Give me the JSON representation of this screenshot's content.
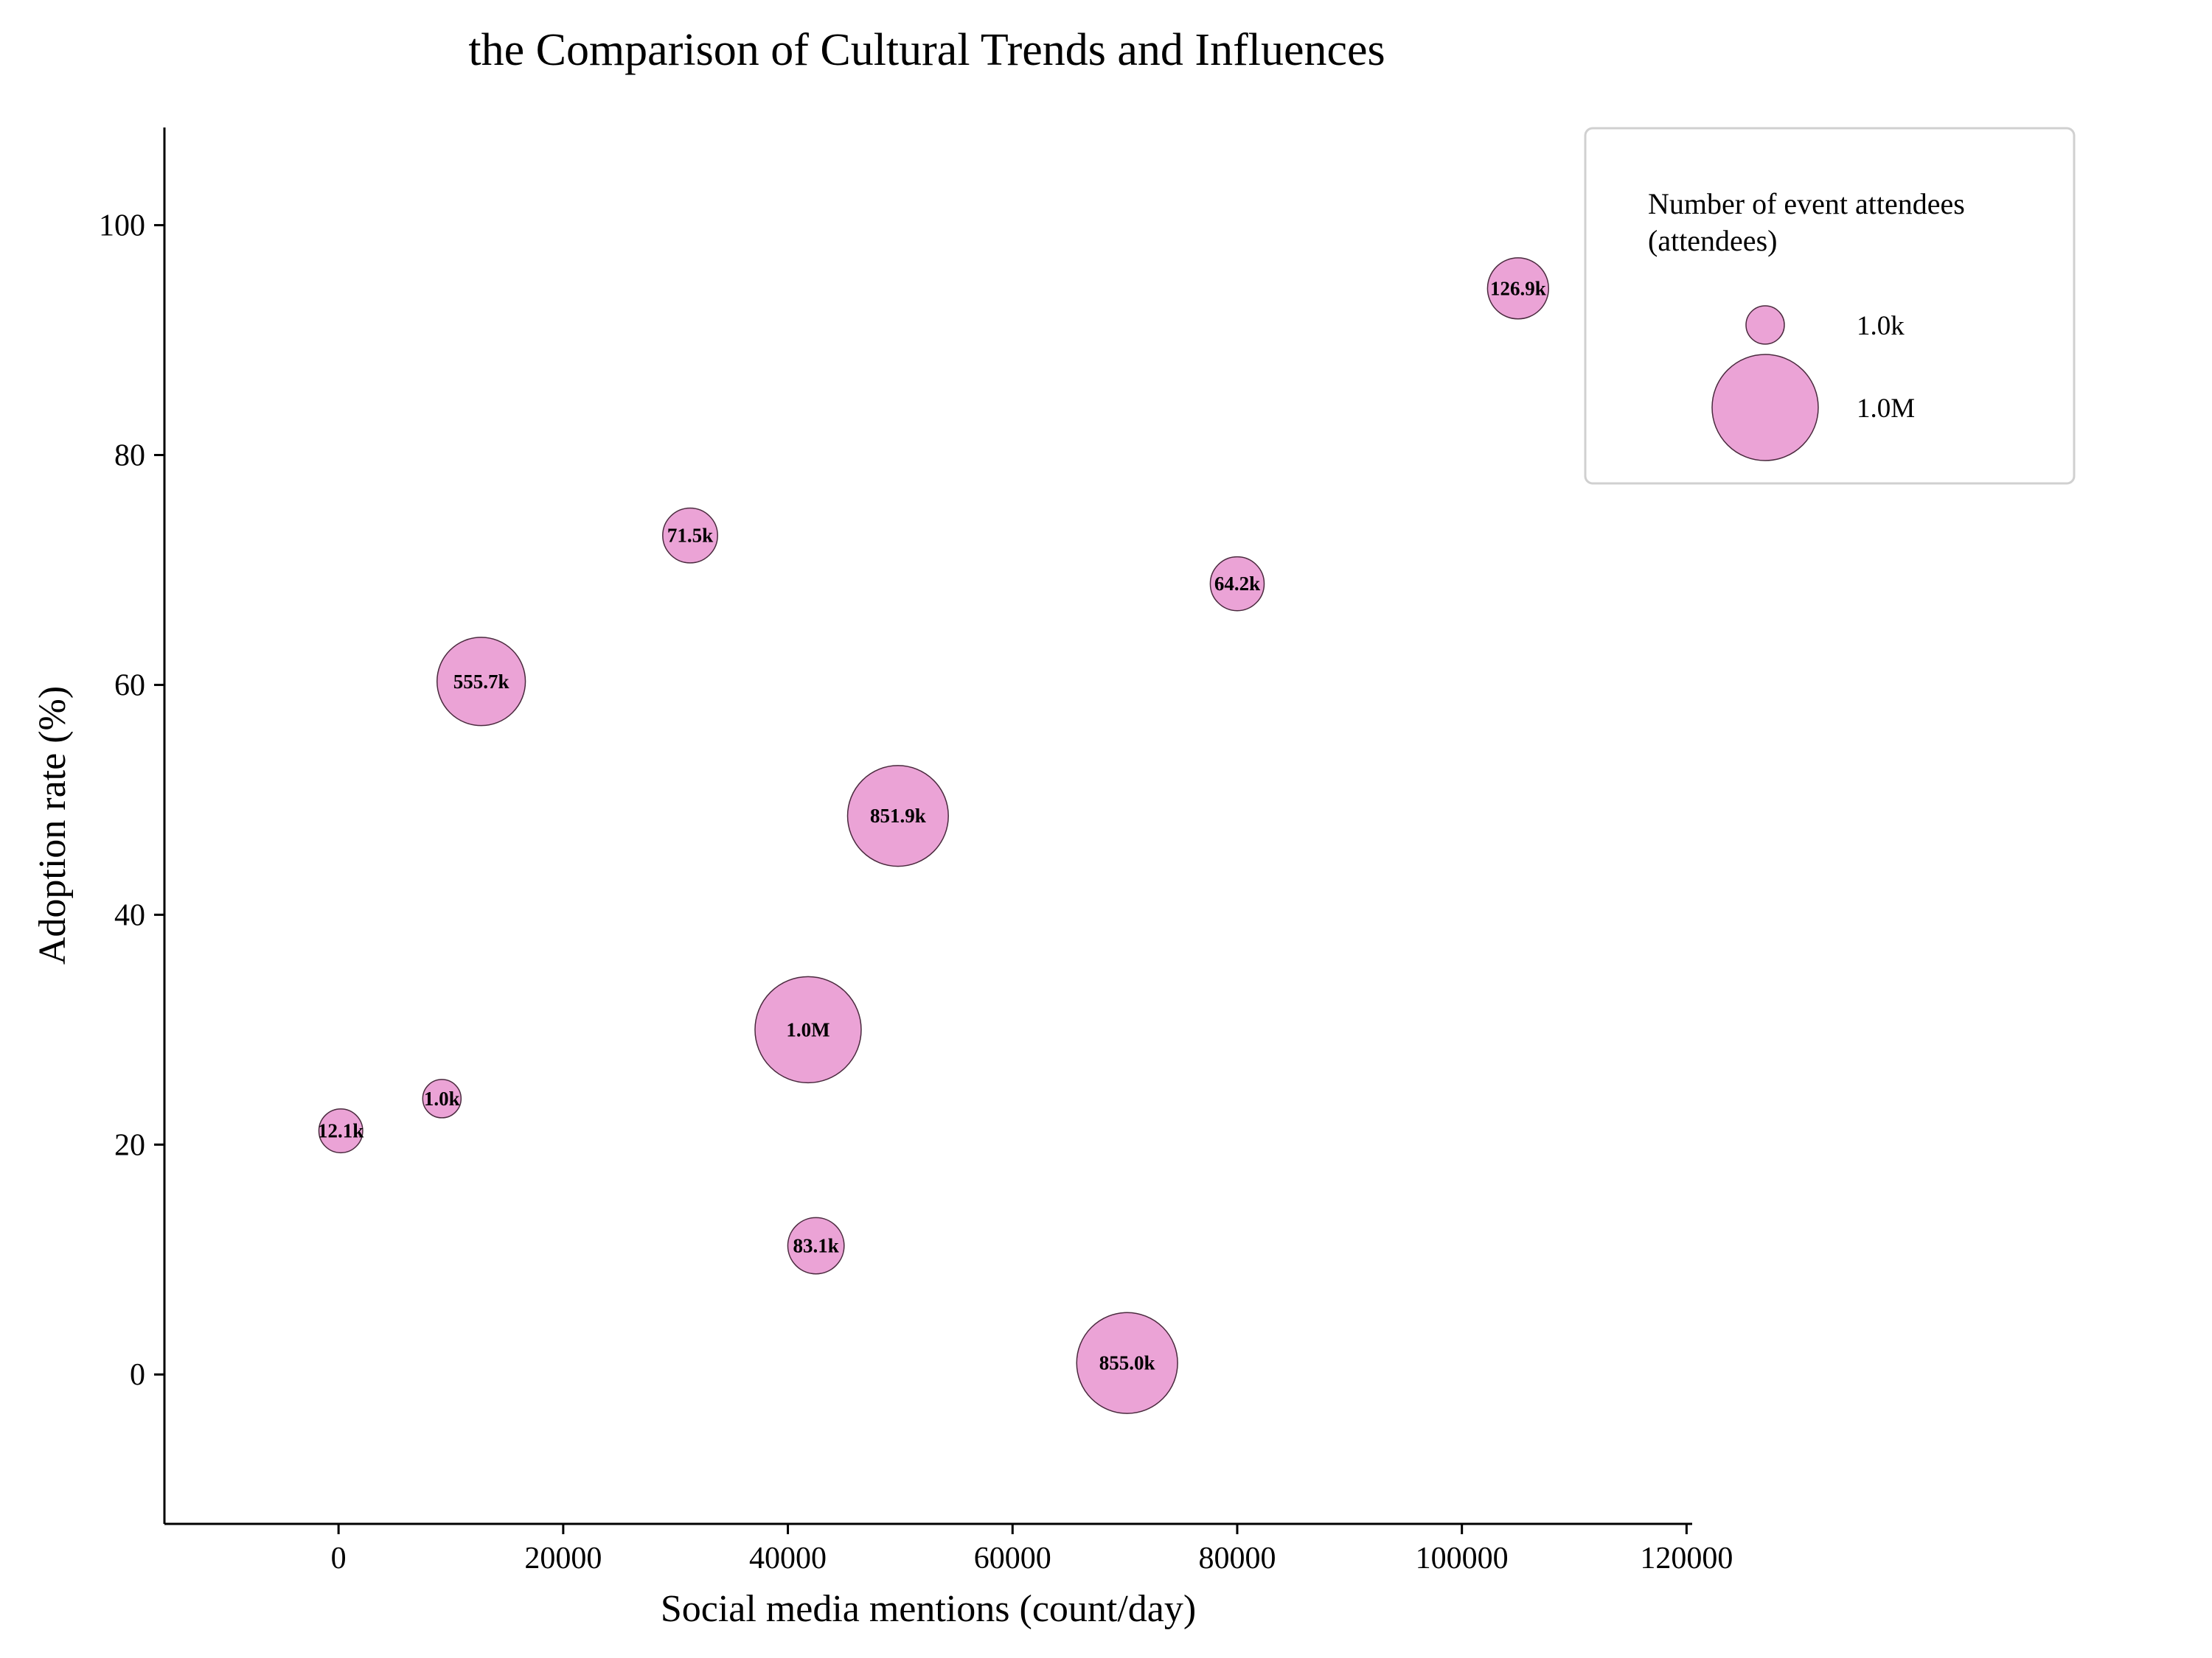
{
  "chart_data": {
    "type": "scatter",
    "title": "the Comparison of Cultural Trends and Influences",
    "xlabel": "Social media mentions (count/day)",
    "ylabel": "Adoption rate (%)",
    "xlim": [
      -15500,
      120500
    ],
    "ylim": [
      -13,
      108.5
    ],
    "xticks": [
      0,
      20000,
      40000,
      60000,
      80000,
      100000,
      120000
    ],
    "yticks": [
      0,
      20,
      40,
      60,
      80,
      100
    ],
    "grid": false,
    "size_legend": {
      "title_lines": [
        "Number of event attendees",
        "(attendees)"
      ],
      "placement": "top-right",
      "entries": [
        {
          "label": "1.0k",
          "size": 1000
        },
        {
          "label": "1.0M",
          "size": 1000000
        }
      ]
    },
    "colors": {
      "bubble_fill": "#eba3d6",
      "bubble_edge": "#4a2a3e",
      "axis": "#000000"
    },
    "points": [
      {
        "x": 105000,
        "y": 94.5,
        "size": 126900,
        "label": "126.9k"
      },
      {
        "x": 31300,
        "y": 73.0,
        "size": 71500,
        "label": "71.5k"
      },
      {
        "x": 80000,
        "y": 68.8,
        "size": 64200,
        "label": "64.2k"
      },
      {
        "x": 12700,
        "y": 60.3,
        "size": 555700,
        "label": "555.7k"
      },
      {
        "x": 49800,
        "y": 48.6,
        "size": 851900,
        "label": "851.9k"
      },
      {
        "x": 41800,
        "y": 30.0,
        "size": 1000000,
        "label": "1.0M"
      },
      {
        "x": 9200,
        "y": 24.0,
        "size": 1000,
        "label": "1.0k"
      },
      {
        "x": 200,
        "y": 21.2,
        "size": 12100,
        "label": "12.1k"
      },
      {
        "x": 42500,
        "y": 11.2,
        "size": 83100,
        "label": "83.1k"
      },
      {
        "x": 70200,
        "y": 1.0,
        "size": 855000,
        "label": "855.0k"
      }
    ]
  }
}
